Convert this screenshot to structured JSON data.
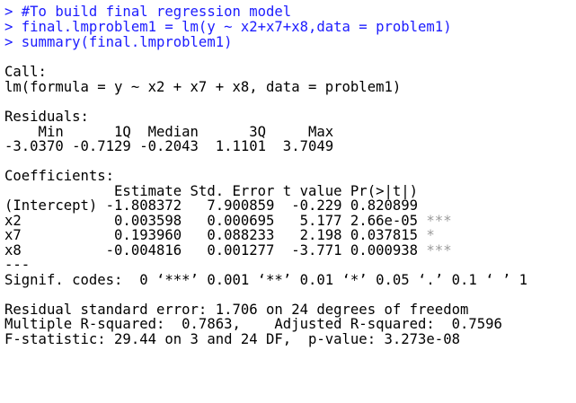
{
  "console": {
    "commands": [
      "> #To build final regression model",
      "> final.lmproblem1 = lm(y ~ x2+x7+x8,data = problem1)",
      "> summary(final.lmproblem1)"
    ],
    "call": {
      "label": "Call:",
      "formula": "lm(formula = y ~ x2 + x7 + x8, data = problem1)"
    },
    "residuals": {
      "label": "Residuals:",
      "header": "    Min      1Q  Median      3Q     Max",
      "values": "-3.0370 -0.7129 -0.2043  1.1101  3.7049"
    },
    "coefficients": {
      "label": "Coefficients:",
      "header": "             Estimate Std. Error t value Pr(>|t|)",
      "rows": [
        {
          "line": "(Intercept) -1.808372   7.900859  -0.229 0.820899"
        },
        {
          "line": "x2           0.003598   0.000695   5.177 2.66e-05",
          "stars": "***"
        },
        {
          "line": "x7           0.193960   0.088233   2.198 0.037815",
          "stars": "*"
        },
        {
          "line": "x8          -0.004816   0.001277  -3.771 0.000938",
          "stars": "***"
        }
      ],
      "separator": "---",
      "signif_codes": "Signif. codes:  0 ‘***’ 0.001 ‘**’ 0.01 ‘*’ 0.05 ‘.’ 0.1 ‘ ’ 1"
    },
    "summary_stats": [
      "Residual standard error: 1.706 on 24 degrees of freedom",
      "Multiple R-squared:  0.7863,    Adjusted R-squared:  0.7596",
      "F-statistic: 29.44 on 3 and 24 DF,  p-value: 3.273e-08"
    ]
  }
}
